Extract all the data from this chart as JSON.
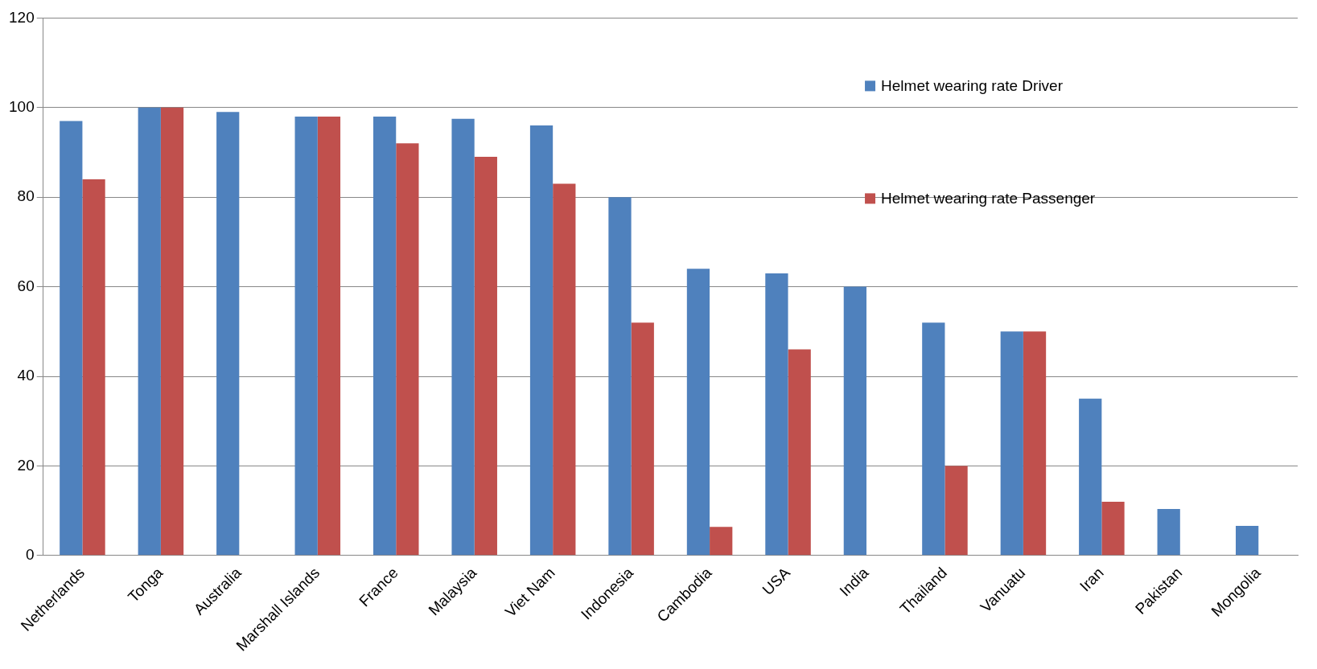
{
  "chart_data": {
    "type": "bar",
    "categories": [
      "Netherlands",
      "Tonga",
      "Australia",
      "Marshall Islands",
      "France",
      "Malaysia",
      "Viet Nam",
      "Indonesia",
      "Cambodia",
      "USA",
      "India",
      "Thailand",
      "Vanuatu",
      "Iran",
      "Pakistan",
      "Mongolia"
    ],
    "series": [
      {
        "name": "Helmet wearing rate Driver",
        "color": "#4f81bd",
        "values": [
          97,
          100,
          99,
          98,
          98,
          97.5,
          96,
          80,
          64,
          63,
          60,
          52,
          50,
          35,
          10.4,
          6.6
        ]
      },
      {
        "name": "Helmet wearing rate Passenger",
        "color": "#c0504d",
        "values": [
          84,
          100,
          null,
          98,
          92,
          89,
          83,
          52,
          6.4,
          46,
          null,
          20,
          50,
          12,
          null,
          null
        ]
      }
    ],
    "ylim": [
      0,
      120
    ],
    "yticks": [
      0,
      20,
      40,
      60,
      80,
      100,
      120
    ],
    "grid": "y",
    "legend": "top right"
  }
}
